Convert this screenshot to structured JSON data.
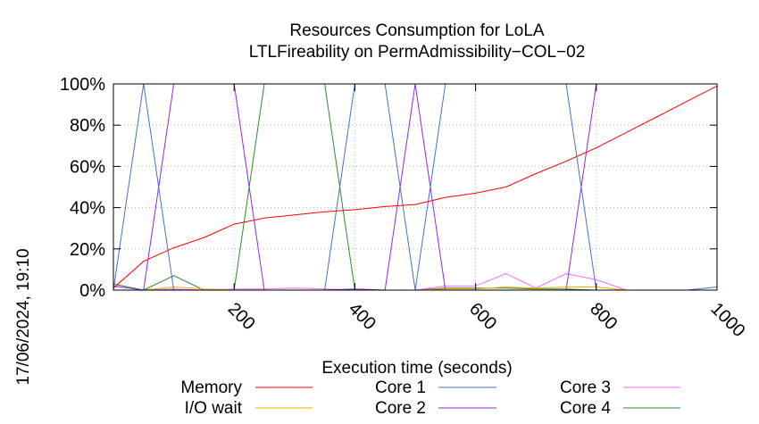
{
  "chart_data": {
    "type": "line",
    "title": "Resources Consumption for LoLA",
    "subtitle": "LTLFireability on PermAdmissibility−COL−02",
    "xlabel": "Execution time (seconds)",
    "ylabel": "",
    "timestamp": "17/06/2024, 19:10",
    "xlim": [
      0,
      1000
    ],
    "ylim": [
      0,
      100
    ],
    "xticks": [
      200,
      400,
      600,
      800,
      1000
    ],
    "xtick_labels": [
      "200",
      "400",
      "600",
      "800",
      "1000"
    ],
    "yticks": [
      0,
      20,
      40,
      60,
      80,
      100
    ],
    "ytick_labels": [
      "0%",
      "20%",
      "40%",
      "60%",
      "80%",
      "100%"
    ],
    "grid": true,
    "legend_position": "bottom",
    "series": [
      {
        "name": "Memory",
        "color": "#ff0000",
        "x": [
          0,
          50,
          100,
          150,
          200,
          250,
          300,
          350,
          400,
          450,
          500,
          550,
          600,
          650,
          700,
          750,
          800,
          850,
          900,
          950,
          1000
        ],
        "y": [
          1,
          14,
          20.5,
          25.5,
          32,
          35,
          36.5,
          38,
          39,
          40.5,
          41.5,
          45,
          47,
          50,
          56.5,
          62.5,
          69,
          76.5,
          84,
          91.5,
          99
        ]
      },
      {
        "name": "I/O wait",
        "color": "#ffa500",
        "x": [
          0,
          50,
          100,
          150,
          200,
          250,
          300,
          350,
          400,
          450,
          500,
          550,
          600,
          650,
          700,
          750,
          800,
          850,
          900,
          950,
          1000
        ],
        "y": [
          0,
          0,
          1.5,
          0.5,
          0,
          0,
          0,
          0,
          0,
          0,
          0,
          0.5,
          0.5,
          1.5,
          1,
          1.5,
          1.5,
          0,
          0,
          0,
          0
        ]
      },
      {
        "name": "Core 1",
        "color": "#4472c4",
        "x": [
          0,
          50,
          100,
          150,
          200,
          250,
          300,
          350,
          400,
          450,
          500,
          550,
          600,
          650,
          700,
          750,
          800,
          850,
          900,
          950,
          1000
        ],
        "y": [
          0,
          100,
          0,
          0,
          0,
          0,
          0,
          0,
          100,
          100,
          0,
          100,
          100,
          100,
          100,
          100,
          0,
          0,
          0,
          0,
          1.5
        ]
      },
      {
        "name": "Core 2",
        "color": "#8a2be2",
        "x": [
          0,
          50,
          100,
          150,
          200,
          250,
          300,
          350,
          400,
          450,
          500,
          550,
          600,
          650,
          700,
          750,
          800,
          850,
          900,
          950,
          1000
        ],
        "y": [
          2,
          0,
          100,
          100,
          100,
          0,
          0,
          0,
          0.5,
          0,
          100,
          0,
          0,
          0,
          0,
          0,
          100,
          100,
          100,
          100,
          100
        ]
      },
      {
        "name": "Core 3",
        "color": "#ff66ff",
        "x": [
          0,
          50,
          100,
          150,
          200,
          250,
          300,
          350,
          400,
          450,
          500,
          550,
          600,
          650,
          700,
          750,
          800,
          850,
          900,
          950,
          1000
        ],
        "y": [
          2,
          0,
          0.5,
          0,
          0.5,
          0.5,
          1,
          0.5,
          0,
          0,
          0,
          2,
          2,
          8,
          1,
          8,
          5,
          0,
          0,
          0,
          0
        ]
      },
      {
        "name": "Core 4",
        "color": "#2e8b2e",
        "x": [
          0,
          50,
          100,
          150,
          200,
          250,
          300,
          350,
          400,
          450,
          500,
          550,
          600,
          650,
          700,
          750,
          800,
          850,
          900,
          950,
          1000
        ],
        "y": [
          3,
          0,
          7,
          0,
          0,
          100,
          100,
          100,
          0,
          0,
          0,
          1,
          1,
          1,
          0.5,
          0.5,
          0,
          0,
          0,
          0,
          0
        ]
      }
    ]
  }
}
